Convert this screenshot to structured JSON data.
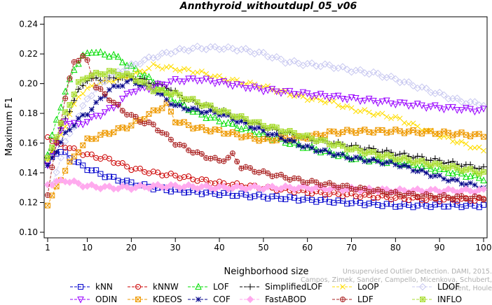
{
  "chart_data": {
    "type": "line",
    "title": "Annthyroid_withoutdupl_05_v06",
    "xlabel": "Neighborhood size",
    "ylabel": "Maximum F1",
    "xlim": [
      1,
      100
    ],
    "ylim": [
      0.1,
      0.245
    ],
    "xticks": [
      "1",
      "10",
      "20",
      "30",
      "40",
      "50",
      "60",
      "70",
      "80",
      "90",
      "100"
    ],
    "yticks": [
      "0.10",
      "0.12",
      "0.14",
      "0.16",
      "0.18",
      "0.20",
      "0.22",
      "0.24"
    ],
    "grid": false,
    "legend_position": "bottom",
    "series": [
      {
        "name": "kNN",
        "color": "#0000cc",
        "marker": "square",
        "points": [
          [
            1,
            0.148
          ],
          [
            3,
            0.154
          ],
          [
            5,
            0.153
          ],
          [
            8,
            0.146
          ],
          [
            10,
            0.143
          ],
          [
            15,
            0.137
          ],
          [
            20,
            0.133
          ],
          [
            25,
            0.13
          ],
          [
            30,
            0.128
          ],
          [
            40,
            0.126
          ],
          [
            50,
            0.124
          ],
          [
            60,
            0.122
          ],
          [
            70,
            0.12
          ],
          [
            80,
            0.118
          ],
          [
            90,
            0.118
          ],
          [
            100,
            0.118
          ]
        ]
      },
      {
        "name": "kNNW",
        "color": "#cc0000",
        "marker": "circle",
        "points": [
          [
            1,
            0.164
          ],
          [
            3,
            0.16
          ],
          [
            5,
            0.158
          ],
          [
            8,
            0.154
          ],
          [
            10,
            0.152
          ],
          [
            15,
            0.149
          ],
          [
            20,
            0.143
          ],
          [
            25,
            0.14
          ],
          [
            30,
            0.138
          ],
          [
            40,
            0.133
          ],
          [
            50,
            0.13
          ],
          [
            60,
            0.127
          ],
          [
            70,
            0.125
          ],
          [
            80,
            0.123
          ],
          [
            90,
            0.122
          ],
          [
            100,
            0.122
          ]
        ]
      },
      {
        "name": "LOF",
        "color": "#00dd00",
        "marker": "triangle",
        "points": [
          [
            1,
            0.152
          ],
          [
            3,
            0.176
          ],
          [
            5,
            0.194
          ],
          [
            7,
            0.21
          ],
          [
            9,
            0.218
          ],
          [
            11,
            0.222
          ],
          [
            13,
            0.22
          ],
          [
            16,
            0.219
          ],
          [
            20,
            0.211
          ],
          [
            23,
            0.206
          ],
          [
            26,
            0.198
          ],
          [
            30,
            0.188
          ],
          [
            35,
            0.18
          ],
          [
            40,
            0.175
          ],
          [
            50,
            0.165
          ],
          [
            60,
            0.157
          ],
          [
            70,
            0.15
          ],
          [
            80,
            0.147
          ],
          [
            90,
            0.142
          ],
          [
            100,
            0.136
          ]
        ]
      },
      {
        "name": "SimplifiedLOF",
        "color": "#000000",
        "marker": "plus",
        "points": [
          [
            1,
            0.15
          ],
          [
            3,
            0.162
          ],
          [
            5,
            0.176
          ],
          [
            8,
            0.195
          ],
          [
            10,
            0.203
          ],
          [
            15,
            0.203
          ],
          [
            20,
            0.205
          ],
          [
            25,
            0.2
          ],
          [
            28,
            0.198
          ],
          [
            32,
            0.19
          ],
          [
            40,
            0.182
          ],
          [
            50,
            0.171
          ],
          [
            60,
            0.163
          ],
          [
            70,
            0.158
          ],
          [
            80,
            0.153
          ],
          [
            90,
            0.148
          ],
          [
            100,
            0.143
          ]
        ]
      },
      {
        "name": "LoOP",
        "color": "#ffdd00",
        "marker": "x",
        "points": [
          [
            1,
            0.148
          ],
          [
            5,
            0.172
          ],
          [
            8,
            0.192
          ],
          [
            12,
            0.2
          ],
          [
            20,
            0.205
          ],
          [
            25,
            0.212
          ],
          [
            30,
            0.21
          ],
          [
            35,
            0.208
          ],
          [
            40,
            0.204
          ],
          [
            50,
            0.198
          ],
          [
            60,
            0.19
          ],
          [
            65,
            0.188
          ],
          [
            70,
            0.183
          ],
          [
            80,
            0.177
          ],
          [
            90,
            0.165
          ],
          [
            100,
            0.155
          ]
        ]
      },
      {
        "name": "LDOF",
        "color": "#c8c8f0",
        "marker": "diamond",
        "points": [
          [
            2,
            0.132
          ],
          [
            5,
            0.16
          ],
          [
            10,
            0.19
          ],
          [
            15,
            0.205
          ],
          [
            20,
            0.212
          ],
          [
            25,
            0.218
          ],
          [
            30,
            0.222
          ],
          [
            35,
            0.224
          ],
          [
            40,
            0.224
          ],
          [
            45,
            0.223
          ],
          [
            50,
            0.22
          ],
          [
            55,
            0.215
          ],
          [
            60,
            0.213
          ],
          [
            65,
            0.212
          ],
          [
            70,
            0.209
          ],
          [
            75,
            0.207
          ],
          [
            80,
            0.203
          ],
          [
            85,
            0.198
          ],
          [
            90,
            0.193
          ],
          [
            95,
            0.188
          ],
          [
            100,
            0.186
          ]
        ]
      },
      {
        "name": "ODIN",
        "color": "#9900ff",
        "marker": "triangle-down",
        "points": [
          [
            1,
            0.145
          ],
          [
            5,
            0.175
          ],
          [
            8,
            0.172
          ],
          [
            12,
            0.178
          ],
          [
            16,
            0.184
          ],
          [
            20,
            0.195
          ],
          [
            25,
            0.198
          ],
          [
            30,
            0.202
          ],
          [
            35,
            0.203
          ],
          [
            40,
            0.201
          ],
          [
            50,
            0.196
          ],
          [
            60,
            0.193
          ],
          [
            70,
            0.19
          ],
          [
            80,
            0.187
          ],
          [
            90,
            0.184
          ],
          [
            100,
            0.182
          ]
        ]
      },
      {
        "name": "KDEOS",
        "color": "#ee9900",
        "marker": "square-x",
        "points": [
          [
            1,
            0.118
          ],
          [
            3,
            0.13
          ],
          [
            5,
            0.142
          ],
          [
            8,
            0.155
          ],
          [
            10,
            0.162
          ],
          [
            15,
            0.167
          ],
          [
            20,
            0.172
          ],
          [
            25,
            0.181
          ],
          [
            28,
            0.186
          ],
          [
            30,
            0.175
          ],
          [
            35,
            0.17
          ],
          [
            40,
            0.168
          ],
          [
            45,
            0.165
          ],
          [
            50,
            0.162
          ],
          [
            55,
            0.163
          ],
          [
            60,
            0.164
          ],
          [
            65,
            0.167
          ],
          [
            70,
            0.168
          ],
          [
            80,
            0.168
          ],
          [
            90,
            0.167
          ],
          [
            100,
            0.165
          ]
        ]
      },
      {
        "name": "COF",
        "color": "#000088",
        "marker": "asterisk",
        "points": [
          [
            1,
            0.145
          ],
          [
            3,
            0.155
          ],
          [
            5,
            0.166
          ],
          [
            8,
            0.176
          ],
          [
            10,
            0.18
          ],
          [
            15,
            0.196
          ],
          [
            20,
            0.202
          ],
          [
            25,
            0.196
          ],
          [
            30,
            0.185
          ],
          [
            35,
            0.182
          ],
          [
            40,
            0.18
          ],
          [
            50,
            0.168
          ],
          [
            60,
            0.157
          ],
          [
            70,
            0.15
          ],
          [
            80,
            0.146
          ],
          [
            90,
            0.137
          ],
          [
            100,
            0.13
          ]
        ]
      },
      {
        "name": "FastABOD",
        "color": "#ffaaee",
        "marker": "diamond-filled",
        "points": [
          [
            1,
            0.132
          ],
          [
            5,
            0.135
          ],
          [
            10,
            0.131
          ],
          [
            15,
            0.13
          ],
          [
            20,
            0.13
          ],
          [
            25,
            0.131
          ],
          [
            30,
            0.131
          ],
          [
            40,
            0.13
          ],
          [
            50,
            0.13
          ],
          [
            60,
            0.13
          ],
          [
            70,
            0.129
          ],
          [
            80,
            0.128
          ],
          [
            90,
            0.128
          ],
          [
            100,
            0.128
          ]
        ]
      },
      {
        "name": "LDF",
        "color": "#aa2222",
        "marker": "circle-plus",
        "points": [
          [
            1,
            0.125
          ],
          [
            3,
            0.16
          ],
          [
            5,
            0.19
          ],
          [
            7,
            0.215
          ],
          [
            9,
            0.218
          ],
          [
            10,
            0.215
          ],
          [
            12,
            0.198
          ],
          [
            15,
            0.19
          ],
          [
            18,
            0.182
          ],
          [
            22,
            0.175
          ],
          [
            25,
            0.172
          ],
          [
            30,
            0.16
          ],
          [
            35,
            0.153
          ],
          [
            40,
            0.148
          ],
          [
            42,
            0.15
          ],
          [
            43,
            0.152
          ],
          [
            45,
            0.144
          ],
          [
            50,
            0.14
          ],
          [
            55,
            0.137
          ],
          [
            60,
            0.134
          ],
          [
            70,
            0.13
          ],
          [
            80,
            0.126
          ],
          [
            90,
            0.124
          ],
          [
            100,
            0.123
          ]
        ]
      },
      {
        "name": "INFLO",
        "color": "#aadd33",
        "marker": "box-star",
        "points": [
          [
            1,
            0.15
          ],
          [
            3,
            0.165
          ],
          [
            5,
            0.18
          ],
          [
            8,
            0.2
          ],
          [
            10,
            0.205
          ],
          [
            15,
            0.208
          ],
          [
            20,
            0.205
          ],
          [
            25,
            0.196
          ],
          [
            30,
            0.193
          ],
          [
            40,
            0.182
          ],
          [
            50,
            0.172
          ],
          [
            60,
            0.164
          ],
          [
            70,
            0.156
          ],
          [
            80,
            0.15
          ],
          [
            90,
            0.145
          ],
          [
            100,
            0.14
          ]
        ]
      }
    ]
  },
  "credit": {
    "line1": "Unsupervised Outlier Detection. DAMI, 2015.",
    "line2": "Campos, Zimek, Sander, Campello, Micenkova, Schubert, Assent, Houle"
  }
}
